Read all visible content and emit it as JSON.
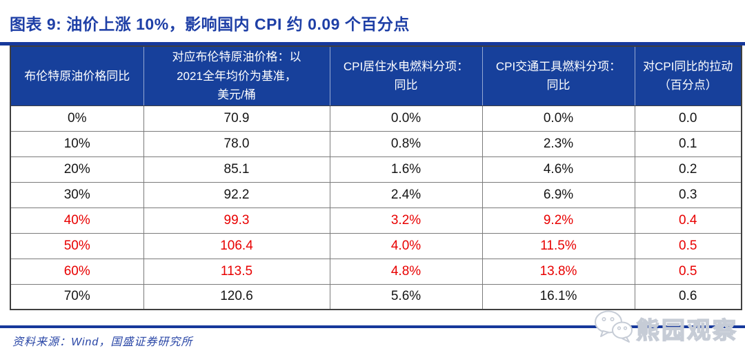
{
  "title": "图表 9:  油价上涨 10%，影响国内 CPI 约 0.09 个百分点",
  "source_note": "资料来源：Wind，国盛证券研究所",
  "watermark": {
    "text": "熊园观察",
    "icon": "wechat-icon"
  },
  "colors": {
    "header_bg": "#17409b",
    "title_text": "#1e3fa6",
    "accent_rule": "#16389b",
    "highlight_red": "#e80000",
    "source_text": "#2946a6",
    "watermark_gray": "#c6ccd6"
  },
  "table": {
    "headers": [
      "布伦特原油价格同比",
      "对应布伦特原油价格：以\n2021全年均价为基准，\n美元/桶",
      "CPI居住水电燃料分项：\n同比",
      "CPI交通工具燃料分项：\n同比",
      "对CPI同比的拉动\n（百分点）"
    ],
    "rows": [
      {
        "cells": [
          "0%",
          "70.9",
          "0.0%",
          "0.0%",
          "0.0"
        ],
        "highlight": false
      },
      {
        "cells": [
          "10%",
          "78.0",
          "0.8%",
          "2.3%",
          "0.1"
        ],
        "highlight": false
      },
      {
        "cells": [
          "20%",
          "85.1",
          "1.6%",
          "4.6%",
          "0.2"
        ],
        "highlight": false
      },
      {
        "cells": [
          "30%",
          "92.2",
          "2.4%",
          "6.9%",
          "0.3"
        ],
        "highlight": false
      },
      {
        "cells": [
          "40%",
          "99.3",
          "3.2%",
          "9.2%",
          "0.4"
        ],
        "highlight": true
      },
      {
        "cells": [
          "50%",
          "106.4",
          "4.0%",
          "11.5%",
          "0.5"
        ],
        "highlight": true
      },
      {
        "cells": [
          "60%",
          "113.5",
          "4.8%",
          "13.8%",
          "0.5"
        ],
        "highlight": true
      },
      {
        "cells": [
          "70%",
          "120.6",
          "5.6%",
          "16.1%",
          "0.6"
        ],
        "highlight": false
      }
    ]
  },
  "chart_data": {
    "type": "table",
    "title": "图表 9: 油价上涨 10%，影响国内 CPI 约 0.09 个百分点",
    "columns": [
      "布伦特原油价格同比",
      "对应布伦特原油价格：以2021全年均价为基准，美元/桶",
      "CPI居住水电燃料分项：同比",
      "CPI交通工具燃料分项：同比",
      "对CPI同比的拉动（百分点）"
    ],
    "rows": [
      [
        "0%",
        "70.9",
        "0.0%",
        "0.0%",
        "0.0"
      ],
      [
        "10%",
        "78.0",
        "0.8%",
        "2.3%",
        "0.1"
      ],
      [
        "20%",
        "85.1",
        "1.6%",
        "4.6%",
        "0.2"
      ],
      [
        "30%",
        "92.2",
        "2.4%",
        "6.9%",
        "0.3"
      ],
      [
        "40%",
        "99.3",
        "3.2%",
        "9.2%",
        "0.4"
      ],
      [
        "50%",
        "106.4",
        "4.0%",
        "11.5%",
        "0.5"
      ],
      [
        "60%",
        "113.5",
        "4.8%",
        "13.8%",
        "0.5"
      ],
      [
        "70%",
        "120.6",
        "5.6%",
        "16.1%",
        "0.6"
      ]
    ],
    "highlighted_rows": [
      "40%",
      "50%",
      "60%"
    ],
    "source": "资料来源：Wind，国盛证券研究所"
  }
}
